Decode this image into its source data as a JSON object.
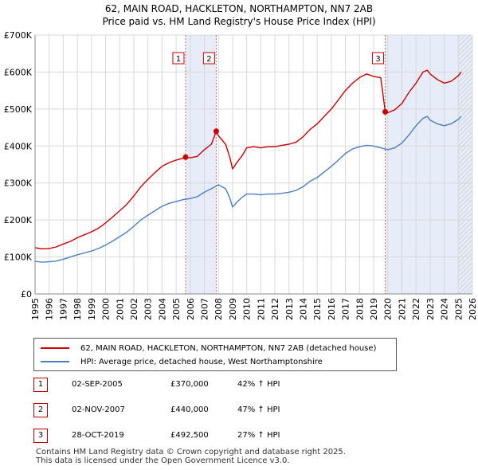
{
  "chart_data": {
    "type": "line",
    "title": "62, MAIN ROAD, HACKLETON, NORTHAMPTON, NN7 2AB",
    "subtitle": "Price paid vs. HM Land Registry's House Price Index (HPI)",
    "xlabel": "",
    "ylabel": "",
    "xlim": [
      1995,
      2026
    ],
    "ylim": [
      0,
      700000
    ],
    "x_ticks": [
      "1995",
      "1996",
      "1997",
      "1998",
      "1999",
      "2000",
      "2001",
      "2002",
      "2003",
      "2004",
      "2005",
      "2006",
      "2007",
      "2008",
      "2009",
      "2010",
      "2011",
      "2012",
      "2013",
      "2014",
      "2015",
      "2016",
      "2017",
      "2018",
      "2019",
      "2020",
      "2021",
      "2022",
      "2023",
      "2024",
      "2025",
      "2026"
    ],
    "y_ticks": [
      {
        "value": 0,
        "label": "£0"
      },
      {
        "value": 100000,
        "label": "£100K"
      },
      {
        "value": 200000,
        "label": "£200K"
      },
      {
        "value": 300000,
        "label": "£300K"
      },
      {
        "value": 400000,
        "label": "£400K"
      },
      {
        "value": 500000,
        "label": "£500K"
      },
      {
        "value": 600000,
        "label": "£600K"
      },
      {
        "value": 700000,
        "label": "£700K"
      }
    ],
    "grid": true,
    "series": [
      {
        "name": "62, MAIN ROAD, HACKLETON, NORTHAMPTON, NN7 2AB (detached house)",
        "color": "#cc0000",
        "x": [
          1995.0,
          1995.5,
          1996.0,
          1996.5,
          1997.0,
          1997.5,
          1998.0,
          1998.5,
          1999.0,
          1999.5,
          2000.0,
          2000.5,
          2001.0,
          2001.5,
          2002.0,
          2002.5,
          2003.0,
          2003.5,
          2004.0,
          2004.5,
          2005.0,
          2005.5,
          2005.67,
          2006.0,
          2006.5,
          2007.0,
          2007.5,
          2007.84,
          2008.0,
          2008.5,
          2008.8,
          2009.0,
          2009.3,
          2009.7,
          2010.0,
          2010.5,
          2011.0,
          2011.5,
          2012.0,
          2012.5,
          2013.0,
          2013.5,
          2014.0,
          2014.5,
          2015.0,
          2015.5,
          2016.0,
          2016.5,
          2017.0,
          2017.5,
          2018.0,
          2018.5,
          2019.0,
          2019.5,
          2019.82,
          2020.0,
          2020.5,
          2021.0,
          2021.5,
          2022.0,
          2022.5,
          2022.8,
          2023.0,
          2023.5,
          2024.0,
          2024.5,
          2025.0,
          2025.2
        ],
        "values": [
          125000,
          122000,
          123000,
          127000,
          135000,
          142000,
          152000,
          160000,
          168000,
          178000,
          192000,
          208000,
          225000,
          242000,
          265000,
          290000,
          310000,
          328000,
          345000,
          355000,
          362000,
          367000,
          370000,
          368000,
          372000,
          390000,
          405000,
          440000,
          428000,
          405000,
          370000,
          338000,
          355000,
          375000,
          395000,
          398000,
          395000,
          398000,
          398000,
          402000,
          405000,
          410000,
          425000,
          445000,
          460000,
          480000,
          500000,
          525000,
          550000,
          570000,
          585000,
          595000,
          588000,
          585000,
          492500,
          490000,
          498000,
          515000,
          545000,
          570000,
          600000,
          605000,
          595000,
          580000,
          570000,
          575000,
          590000,
          600000
        ]
      },
      {
        "name": "HPI: Average price, detached house, West Northamptonshire",
        "color": "#4a7fc1",
        "x": [
          1995.0,
          1995.5,
          1996.0,
          1996.5,
          1997.0,
          1997.5,
          1998.0,
          1998.5,
          1999.0,
          1999.5,
          2000.0,
          2000.5,
          2001.0,
          2001.5,
          2002.0,
          2002.5,
          2003.0,
          2003.5,
          2004.0,
          2004.5,
          2005.0,
          2005.5,
          2006.0,
          2006.5,
          2007.0,
          2007.5,
          2008.0,
          2008.5,
          2008.8,
          2009.0,
          2009.3,
          2009.7,
          2010.0,
          2010.5,
          2011.0,
          2011.5,
          2012.0,
          2012.5,
          2013.0,
          2013.5,
          2014.0,
          2014.5,
          2015.0,
          2015.5,
          2016.0,
          2016.5,
          2017.0,
          2017.5,
          2018.0,
          2018.5,
          2019.0,
          2019.5,
          2020.0,
          2020.5,
          2021.0,
          2021.5,
          2022.0,
          2022.5,
          2022.8,
          2023.0,
          2023.5,
          2024.0,
          2024.5,
          2025.0,
          2025.2
        ],
        "values": [
          88000,
          86000,
          87000,
          89000,
          94000,
          100000,
          106000,
          111000,
          116000,
          123000,
          132000,
          143000,
          155000,
          167000,
          183000,
          200000,
          213000,
          225000,
          237000,
          245000,
          250000,
          255000,
          258000,
          263000,
          275000,
          285000,
          295000,
          285000,
          260000,
          235000,
          248000,
          262000,
          270000,
          270000,
          268000,
          270000,
          270000,
          272000,
          275000,
          280000,
          290000,
          305000,
          315000,
          330000,
          345000,
          362000,
          380000,
          392000,
          398000,
          402000,
          400000,
          395000,
          390000,
          395000,
          408000,
          430000,
          455000,
          475000,
          480000,
          470000,
          460000,
          455000,
          460000,
          472000,
          480000
        ]
      }
    ],
    "sales": [
      {
        "id": "1",
        "date": "02-SEP-2005",
        "year": 2005.67,
        "price": 370000,
        "price_label": "£370,000",
        "hpi": "42% ↑ HPI"
      },
      {
        "id": "2",
        "date": "02-NOV-2007",
        "year": 2007.84,
        "price": 440000,
        "price_label": "£440,000",
        "hpi": "47% ↑ HPI"
      },
      {
        "id": "3",
        "date": "28-OCT-2019",
        "year": 2019.82,
        "price": 492500,
        "price_label": "£492,500",
        "hpi": "27% ↑ HPI"
      }
    ],
    "shaded_ranges": [
      [
        2005.67,
        2007.84
      ],
      [
        2019.82,
        2026
      ]
    ],
    "hatched_from": 2025.0
  },
  "legend": {
    "items": [
      {
        "label": "62, MAIN ROAD, HACKLETON, NORTHAMPTON, NN7 2AB (detached house)",
        "color": "#cc0000"
      },
      {
        "label": "HPI: Average price, detached house, West Northamptonshire",
        "color": "#4a7fc1"
      }
    ]
  },
  "footer": {
    "line1": "Contains HM Land Registry data © Crown copyright and database right 2025.",
    "line2": "This data is licensed under the Open Government Licence v3.0."
  }
}
